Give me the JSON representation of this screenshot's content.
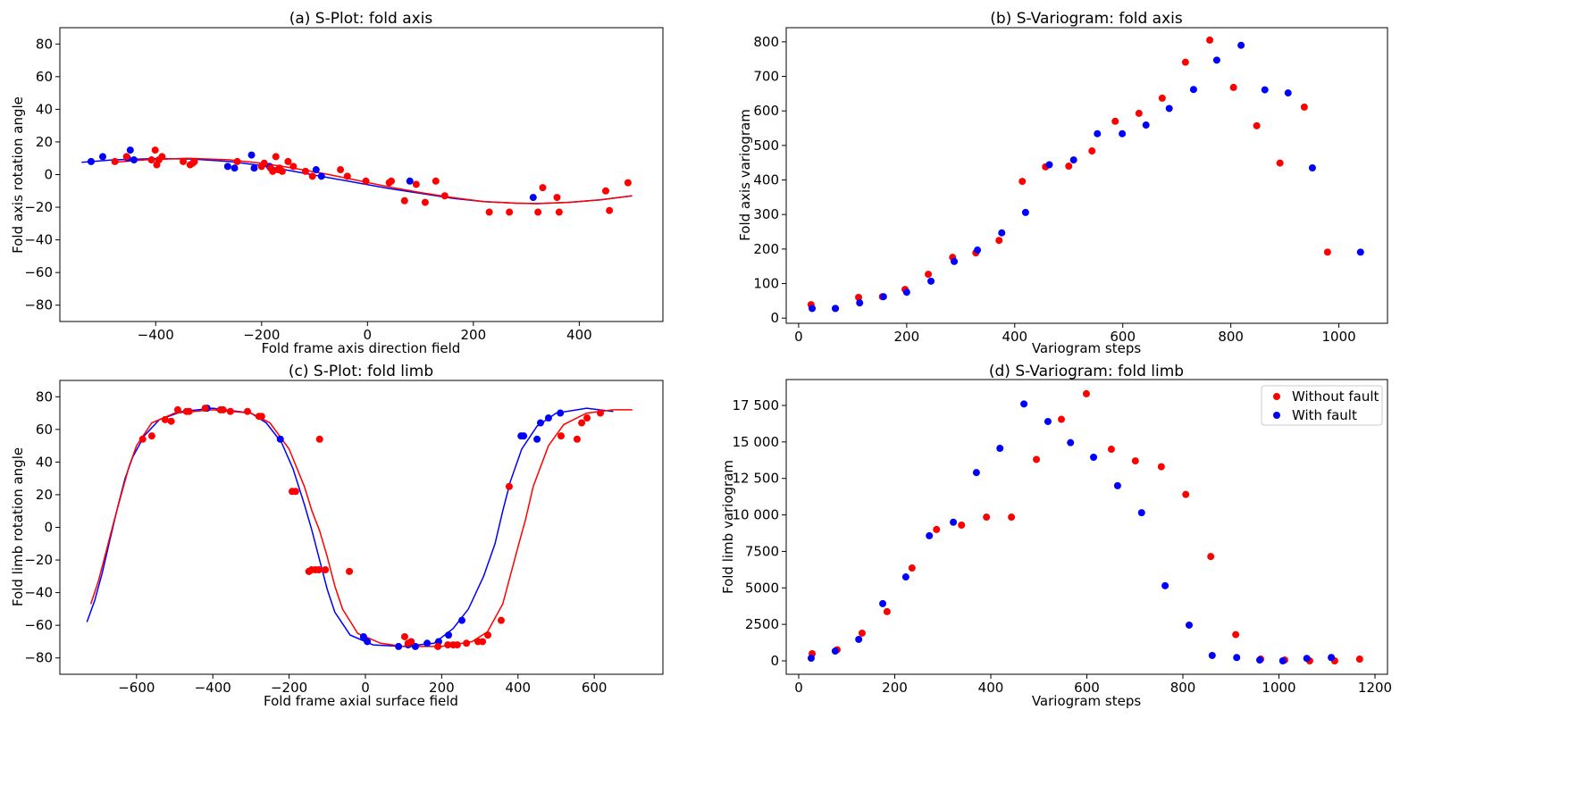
{
  "chart_data": [
    {
      "id": "a",
      "type": "scatter",
      "title": "(a) S-Plot: fold axis",
      "xlabel": "Fold frame axis direction field",
      "ylabel": "Fold axis rotation angle",
      "xlim": [
        -581,
        558
      ],
      "ylim": [
        -90,
        90
      ],
      "xticks": [
        -400,
        -200,
        0,
        200,
        400
      ],
      "xtick_labels": [
        "−400",
        "−200",
        "0",
        "200",
        "400"
      ],
      "yticks": [
        -80,
        -60,
        -40,
        -20,
        0,
        20,
        40,
        60,
        80
      ],
      "ytick_labels": [
        "−80",
        "−60",
        "−40",
        "−20",
        "0",
        "20",
        "40",
        "60",
        "80"
      ],
      "grid": false,
      "series": [
        {
          "color": "#0000ff",
          "kind": "points",
          "x": [
            -522,
            -500,
            -453,
            -448,
            -441,
            -264,
            -251,
            -219,
            -214,
            -185,
            -97,
            -87,
            80,
            313
          ],
          "y": [
            8,
            11,
            10,
            15,
            9,
            5,
            4,
            12,
            4,
            5,
            3,
            -1,
            -4,
            -14
          ]
        },
        {
          "color": "#ff0000",
          "kind": "points",
          "x": [
            -477,
            -455,
            -408,
            -401,
            -398,
            -394,
            -388,
            -348,
            -335,
            -330,
            -327,
            -246,
            -200,
            -195,
            -183,
            -179,
            -173,
            -169,
            -166,
            -161,
            -150,
            -140,
            -117,
            -104,
            -51,
            -38,
            -3,
            41,
            45,
            70,
            92,
            109,
            129,
            146,
            230,
            268,
            322,
            331,
            358,
            362,
            450,
            457,
            492
          ],
          "y": [
            8,
            11,
            9,
            15,
            6,
            9,
            11,
            8,
            6,
            7,
            8,
            8,
            5,
            7,
            4,
            2,
            11,
            3,
            4,
            2,
            8,
            5,
            2,
            -1,
            3,
            -1,
            -4,
            -5,
            -4,
            -16,
            -6,
            -17,
            -4,
            -13,
            -23,
            -23,
            -23,
            -8,
            -14,
            -23,
            -10,
            -22,
            -5
          ]
        },
        {
          "color": "#0000ff",
          "kind": "line",
          "x": [
            -540,
            -480,
            -400,
            -330,
            -260,
            -200,
            -140,
            -80,
            -20,
            40,
            100,
            160,
            220,
            280,
            320,
            380,
            440,
            500
          ],
          "y": [
            7.5,
            9,
            9.8,
            9.5,
            8,
            5.5,
            2,
            -1.5,
            -5,
            -8.5,
            -11.5,
            -14.5,
            -16.5,
            -17.5,
            -17.8,
            -17,
            -15.5,
            -13
          ]
        },
        {
          "color": "#ff0000",
          "kind": "line",
          "x": [
            -480,
            -420,
            -340,
            -260,
            -200,
            -140,
            -80,
            -20,
            40,
            100,
            160,
            220,
            280,
            320,
            380,
            440,
            500
          ],
          "y": [
            7.5,
            9,
            10,
            9,
            7,
            4,
            0.5,
            -3.5,
            -7.5,
            -11,
            -14,
            -16.5,
            -17.5,
            -17.8,
            -17,
            -15.5,
            -13
          ]
        }
      ]
    },
    {
      "id": "b",
      "type": "scatter",
      "title": "(b) S-Variogram: fold axis",
      "xlabel": "Variogram steps",
      "ylabel": "Fold axis variogram",
      "xlim": [
        -23,
        1090
      ],
      "ylim": [
        -15,
        841
      ],
      "xticks": [
        0,
        200,
        400,
        600,
        800,
        1000
      ],
      "xtick_labels": [
        "0",
        "200",
        "400",
        "600",
        "800",
        "1000"
      ],
      "yticks": [
        0,
        100,
        200,
        300,
        400,
        500,
        600,
        700,
        800
      ],
      "ytick_labels": [
        "0",
        "100",
        "200",
        "300",
        "400",
        "500",
        "600",
        "700",
        "800"
      ],
      "grid": false,
      "series": [
        {
          "color": "#ff0000",
          "kind": "points",
          "x": [
            23,
            68,
            111,
            155,
            197,
            240,
            285,
            328,
            371,
            414,
            457,
            500,
            543,
            586,
            630,
            673,
            716,
            761,
            805,
            848,
            891,
            936,
            979
          ],
          "y": [
            39,
            28,
            60,
            62,
            83,
            127,
            176,
            189,
            225,
            396,
            438,
            440,
            484,
            570,
            593,
            637,
            741,
            805,
            668,
            557,
            449,
            611,
            191
          ]
        },
        {
          "color": "#0000ff",
          "kind": "points",
          "x": [
            25,
            68,
            113,
            157,
            200,
            245,
            288,
            331,
            376,
            420,
            464,
            509,
            553,
            599,
            643,
            686,
            731,
            774,
            819,
            863,
            906,
            951,
            1040
          ],
          "y": [
            28,
            28,
            44,
            62,
            75,
            107,
            164,
            197,
            247,
            306,
            444,
            458,
            534,
            534,
            559,
            607,
            662,
            747,
            790,
            661,
            652,
            435,
            191
          ]
        }
      ]
    },
    {
      "id": "c",
      "type": "scatter",
      "title": "(c) S-Plot: fold limb",
      "xlabel": "Fold frame axial surface field",
      "ylabel": "Fold limb rotation angle",
      "xlim": [
        -801,
        780
      ],
      "ylim": [
        -90,
        90
      ],
      "xticks": [
        -600,
        -400,
        -200,
        0,
        200,
        400,
        600
      ],
      "xtick_labels": [
        "−600",
        "−400",
        "−200",
        "0",
        "200",
        "400",
        "600"
      ],
      "yticks": [
        -80,
        -60,
        -40,
        -20,
        0,
        20,
        40,
        60,
        80
      ],
      "ytick_labels": [
        "−80",
        "−60",
        "−40",
        "−20",
        "0",
        "20",
        "40",
        "60",
        "80"
      ],
      "grid": false,
      "series": [
        {
          "color": "#0000ff",
          "kind": "points",
          "x": [
            -415,
            -223,
            -148,
            -5,
            5,
            87,
            112,
            131,
            162,
            192,
            218,
            253,
            408,
            415,
            450,
            459,
            480,
            511
          ],
          "y": [
            73,
            54,
            -27,
            -67,
            -70,
            -73,
            -72,
            -73,
            -71,
            -70,
            -66,
            -57,
            56,
            56,
            54,
            64,
            67,
            70
          ]
        },
        {
          "color": "#ff0000",
          "kind": "points",
          "x": [
            -584,
            -560,
            -525,
            -509,
            -492,
            -469,
            -462,
            -420,
            -380,
            -373,
            -354,
            -309,
            -279,
            -272,
            -192,
            -183,
            -148,
            -141,
            -131,
            -122,
            -120,
            -105,
            -42,
            103,
            112,
            120,
            190,
            216,
            230,
            241,
            265,
            295,
            307,
            321,
            356,
            377,
            513,
            555,
            567,
            581,
            616
          ],
          "y": [
            54,
            56,
            66,
            65,
            72,
            71,
            71,
            73,
            72,
            72,
            71,
            71,
            68,
            68,
            22,
            22,
            -27,
            -26,
            -26,
            -26,
            54,
            -26,
            -27,
            -67,
            -71,
            -70,
            -73,
            -72,
            -72,
            -72,
            -71,
            -70,
            -70,
            -66,
            -57,
            25,
            56,
            54,
            64,
            67,
            70
          ]
        },
        {
          "color": "#0000ff",
          "kind": "line",
          "x": [
            -730,
            -710,
            -690,
            -670,
            -650,
            -630,
            -610,
            -580,
            -540,
            -480,
            -400,
            -300,
            -260,
            -220,
            -190,
            -160,
            -140,
            -120,
            -100,
            -80,
            -40,
            20,
            100,
            180,
            230,
            270,
            310,
            340,
            360,
            380,
            410,
            450,
            500,
            580,
            650
          ],
          "y": [
            -58,
            -45,
            -28,
            -8,
            12,
            30,
            43,
            56,
            66,
            71,
            73,
            70,
            64,
            52,
            36,
            14,
            -2,
            -20,
            -38,
            -52,
            -66,
            -72,
            -73,
            -71,
            -62,
            -50,
            -30,
            -10,
            10,
            28,
            48,
            62,
            70,
            73,
            71
          ]
        },
        {
          "color": "#ff0000",
          "kind": "line",
          "x": [
            -720,
            -700,
            -680,
            -660,
            -640,
            -620,
            -600,
            -560,
            -500,
            -400,
            -300,
            -250,
            -200,
            -160,
            -140,
            -120,
            -100,
            -80,
            -60,
            -20,
            40,
            100,
            200,
            280,
            320,
            360,
            400,
            420,
            440,
            480,
            520,
            580,
            650,
            700
          ],
          "y": [
            -47,
            -33,
            -15,
            3,
            20,
            37,
            50,
            64,
            70,
            72,
            70,
            64,
            48,
            25,
            10,
            -2,
            -18,
            -36,
            -50,
            -65,
            -71,
            -73,
            -73,
            -70,
            -64,
            -47,
            -12,
            5,
            25,
            50,
            63,
            70,
            72,
            72
          ]
        }
      ]
    },
    {
      "id": "d",
      "type": "scatter",
      "title": "(d) S-Variogram: fold limb",
      "xlabel": "Variogram steps",
      "ylabel": "Fold limb variogram",
      "xlim": [
        -26,
        1226
      ],
      "ylim": [
        -918,
        19274
      ],
      "xticks": [
        0,
        200,
        400,
        600,
        800,
        1000,
        1200
      ],
      "xtick_labels": [
        "0",
        "200",
        "400",
        "600",
        "800",
        "1000",
        "1200"
      ],
      "yticks": [
        0,
        2500,
        5000,
        7500,
        10000,
        12500,
        15000,
        17500
      ],
      "ytick_labels": [
        "0",
        "2500",
        "5000",
        "7500",
        "10 000",
        "12 500",
        "15 000",
        "17 500"
      ],
      "grid": false,
      "legend": {
        "position": "top-right",
        "entries": [
          {
            "label": "Without fault",
            "color": "#ff0000"
          },
          {
            "label": "With fault",
            "color": "#0000ff"
          }
        ]
      },
      "series": [
        {
          "name": "Without fault",
          "color": "#ff0000",
          "kind": "points",
          "x": [
            28,
            80,
            132,
            184,
            236,
            287,
            339,
            391,
            443,
            495,
            547,
            599,
            651,
            701,
            755,
            806,
            858,
            910,
            962,
            1012,
            1064,
            1116,
            1168
          ],
          "y": [
            490,
            760,
            1900,
            3370,
            6360,
            9000,
            9300,
            9850,
            9850,
            13800,
            16550,
            18300,
            14500,
            13700,
            13300,
            11400,
            7150,
            1800,
            120,
            60,
            0,
            0,
            120
          ]
        },
        {
          "name": "With fault",
          "color": "#0000ff",
          "kind": "points",
          "x": [
            26,
            76,
            125,
            175,
            223,
            272,
            322,
            370,
            419,
            469,
            519,
            566,
            614,
            664,
            714,
            763,
            813,
            861,
            912,
            960,
            1008,
            1058,
            1109
          ],
          "y": [
            180,
            670,
            1470,
            3920,
            5750,
            8570,
            9500,
            12900,
            14560,
            17600,
            16400,
            14950,
            13950,
            12000,
            10150,
            5150,
            2450,
            370,
            230,
            60,
            0,
            170,
            230
          ]
        }
      ]
    }
  ]
}
